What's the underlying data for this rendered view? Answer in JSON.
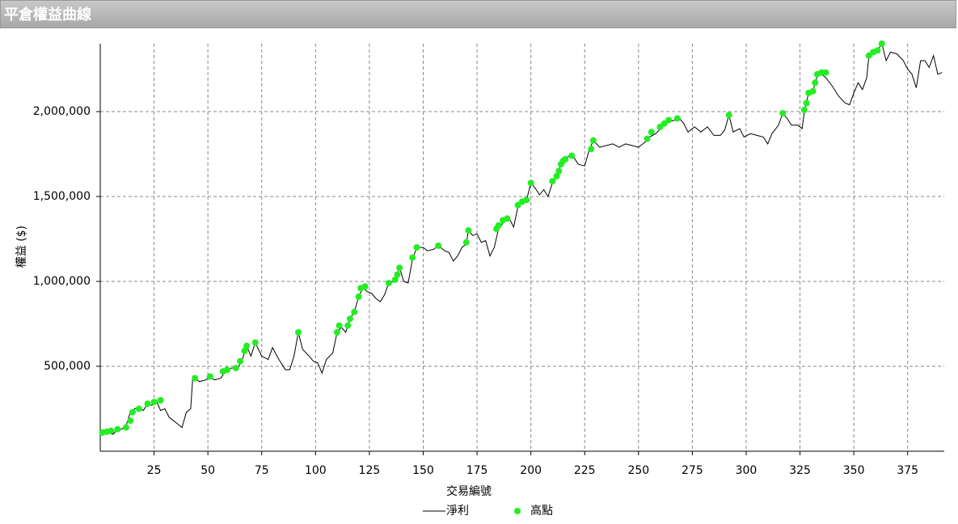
{
  "chart_data": {
    "type": "line",
    "title": "平倉權益曲線",
    "x_label": "交易編號",
    "y_label": "權益 ($)",
    "xlim": [
      0,
      392
    ],
    "ylim": [
      0,
      2400000
    ],
    "xticks": [
      25,
      50,
      75,
      100,
      125,
      150,
      175,
      200,
      225,
      250,
      275,
      300,
      325,
      350,
      375
    ],
    "yticks": [
      {
        "value": 500000,
        "label": "500,000"
      },
      {
        "value": 1000000,
        "label": "1,000,000"
      },
      {
        "value": 1500000,
        "label": "1,500,000"
      },
      {
        "value": 2000000,
        "label": "2,000,000"
      }
    ],
    "grid": true,
    "legend": "bottom",
    "series": [
      {
        "name": "淨利",
        "type": "line",
        "color": "#000000",
        "x": [
          0,
          3,
          6,
          8,
          10,
          12,
          14,
          16,
          18,
          20,
          22,
          24,
          26,
          28,
          30,
          32,
          34,
          36,
          38,
          40,
          42,
          43,
          46,
          49,
          51,
          53,
          56,
          58,
          61,
          64,
          66,
          68,
          70,
          72,
          75,
          78,
          80,
          83,
          86,
          88,
          90,
          92,
          94,
          97,
          99,
          101,
          103,
          105,
          108,
          110,
          112,
          114,
          116,
          118,
          120,
          122,
          124,
          126,
          128,
          130,
          132,
          134,
          136,
          138,
          139,
          141,
          143,
          145,
          147,
          150,
          152,
          155,
          157,
          160,
          162,
          164,
          166,
          168,
          170,
          171,
          173,
          175,
          177,
          179,
          181,
          183,
          185,
          188,
          190,
          192,
          194,
          196,
          198,
          200,
          202,
          204,
          206,
          208,
          210,
          212,
          214,
          216,
          218,
          220,
          222,
          225,
          227,
          229,
          232,
          235,
          238,
          241,
          244,
          247,
          250,
          253,
          255,
          258,
          261,
          264,
          267,
          269,
          271,
          273,
          276,
          279,
          282,
          285,
          288,
          290,
          292,
          294,
          297,
          299,
          302,
          305,
          308,
          310,
          312,
          315,
          317,
          319,
          321,
          324,
          326,
          327,
          329,
          331,
          333,
          335,
          337,
          340,
          343,
          346,
          348,
          350,
          352,
          354,
          356,
          357,
          359,
          361,
          363,
          365,
          367,
          370,
          373,
          375,
          377,
          379,
          381,
          383,
          385,
          387,
          389,
          391
        ],
        "values": [
          100000,
          110000,
          100000,
          130000,
          130000,
          150000,
          230000,
          250000,
          260000,
          240000,
          280000,
          270000,
          300000,
          240000,
          250000,
          200000,
          180000,
          160000,
          140000,
          230000,
          250000,
          440000,
          410000,
          420000,
          440000,
          420000,
          430000,
          470000,
          490000,
          490000,
          540000,
          620000,
          560000,
          640000,
          560000,
          540000,
          610000,
          540000,
          480000,
          480000,
          560000,
          700000,
          600000,
          560000,
          530000,
          520000,
          460000,
          540000,
          580000,
          700000,
          730000,
          700000,
          780000,
          820000,
          910000,
          960000,
          940000,
          930000,
          900000,
          880000,
          920000,
          990000,
          1000000,
          1040000,
          1080000,
          1000000,
          990000,
          1130000,
          1200000,
          1200000,
          1180000,
          1190000,
          1210000,
          1180000,
          1170000,
          1120000,
          1150000,
          1200000,
          1220000,
          1300000,
          1270000,
          1280000,
          1230000,
          1240000,
          1150000,
          1200000,
          1310000,
          1360000,
          1370000,
          1320000,
          1440000,
          1460000,
          1480000,
          1580000,
          1550000,
          1510000,
          1540000,
          1500000,
          1580000,
          1620000,
          1690000,
          1720000,
          1740000,
          1730000,
          1690000,
          1680000,
          1770000,
          1830000,
          1790000,
          1800000,
          1810000,
          1790000,
          1810000,
          1800000,
          1790000,
          1820000,
          1850000,
          1870000,
          1910000,
          1940000,
          1950000,
          1960000,
          1930000,
          1880000,
          1910000,
          1880000,
          1910000,
          1860000,
          1860000,
          1890000,
          1980000,
          1880000,
          1900000,
          1850000,
          1870000,
          1860000,
          1850000,
          1810000,
          1870000,
          1920000,
          1990000,
          1960000,
          1920000,
          1920000,
          1900000,
          2000000,
          2110000,
          2120000,
          2210000,
          2220000,
          2200000,
          2150000,
          2090000,
          2050000,
          2040000,
          2110000,
          2170000,
          2130000,
          2200000,
          2330000,
          2350000,
          2360000,
          2400000,
          2300000,
          2350000,
          2340000,
          2300000,
          2250000,
          2220000,
          2140000,
          2300000,
          2300000,
          2260000,
          2330000,
          2220000,
          2230000
        ]
      },
      {
        "name": "高點",
        "type": "scatter",
        "color": "#22ee22",
        "x": [
          1,
          3,
          5,
          8,
          12,
          14,
          15,
          18,
          22,
          25,
          28,
          44,
          51,
          57,
          59,
          63,
          65,
          67,
          68,
          72,
          92,
          110,
          111,
          115,
          116,
          118,
          120,
          121,
          123,
          134,
          137,
          138,
          139,
          145,
          147,
          157,
          170,
          171,
          184,
          185,
          187,
          189,
          194,
          196,
          198,
          200,
          210,
          212,
          213,
          214,
          215,
          216,
          219,
          228,
          229,
          254,
          256,
          260,
          262,
          264,
          268,
          292,
          317,
          327,
          328,
          329,
          331,
          332,
          333,
          335,
          337,
          357,
          359,
          361,
          363
        ],
        "values": [
          110000,
          115000,
          120000,
          130000,
          140000,
          180000,
          230000,
          250000,
          280000,
          290000,
          300000,
          430000,
          440000,
          470000,
          480000,
          490000,
          530000,
          590000,
          620000,
          640000,
          700000,
          700000,
          740000,
          740000,
          780000,
          820000,
          910000,
          960000,
          970000,
          990000,
          1010000,
          1040000,
          1080000,
          1140000,
          1200000,
          1210000,
          1230000,
          1300000,
          1310000,
          1330000,
          1360000,
          1370000,
          1450000,
          1470000,
          1480000,
          1580000,
          1590000,
          1620000,
          1650000,
          1690000,
          1710000,
          1720000,
          1740000,
          1780000,
          1830000,
          1840000,
          1880000,
          1910000,
          1930000,
          1950000,
          1960000,
          1980000,
          1990000,
          2010000,
          2050000,
          2110000,
          2120000,
          2170000,
          2220000,
          2230000,
          2230000,
          2330000,
          2350000,
          2360000,
          2400000
        ]
      }
    ]
  }
}
